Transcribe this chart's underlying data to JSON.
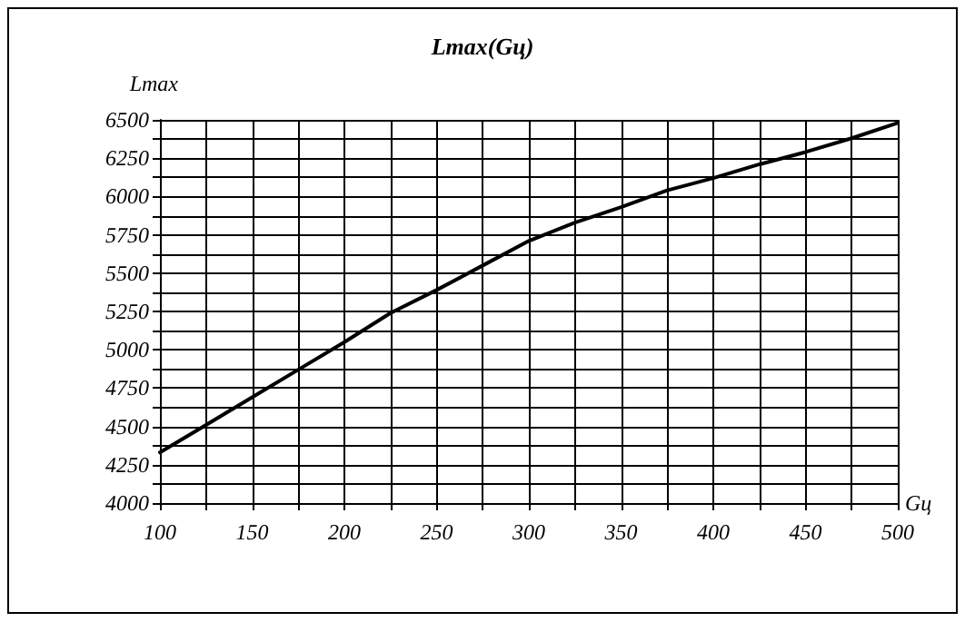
{
  "chart_data": {
    "type": "line",
    "title": "Lmax(Gц)",
    "xlabel": "Gц",
    "ylabel": "Lmax",
    "x": [
      100,
      125,
      150,
      175,
      200,
      225,
      250,
      275,
      300,
      325,
      350,
      375,
      400,
      425,
      450,
      475,
      500
    ],
    "series": [
      {
        "color": "#000000",
        "values": [
          4330,
          4510,
          4690,
          4870,
          5050,
          5240,
          5390,
          5550,
          5710,
          5830,
          5930,
          6040,
          6120,
          6210,
          6290,
          6380,
          6480
        ]
      }
    ],
    "xlim": [
      100,
      500
    ],
    "xticks": [
      100,
      {
        "value": 125,
        "label": null
      },
      150,
      {
        "value": 175,
        "label": null
      },
      200,
      {
        "value": 225,
        "label": null
      },
      250,
      {
        "value": 275,
        "label": null
      },
      300,
      {
        "value": 325,
        "label": null
      },
      350,
      {
        "value": 375,
        "label": null
      },
      400,
      {
        "value": 425,
        "label": null
      },
      450,
      {
        "value": 475,
        "label": null
      },
      500
    ],
    "ylim": [
      4000,
      6500
    ],
    "yticks": [
      4000,
      {
        "value": 4125,
        "label": null
      },
      4250,
      {
        "value": 4375,
        "label": null
      },
      4500,
      {
        "value": 4625,
        "label": null
      },
      4750,
      {
        "value": 4875,
        "label": null
      },
      5000,
      {
        "value": 5125,
        "label": null
      },
      5250,
      {
        "value": 5375,
        "label": null
      },
      5500,
      {
        "value": 5625,
        "label": null
      },
      5750,
      {
        "value": 5875,
        "label": null
      },
      6000,
      {
        "value": 6125,
        "label": null
      },
      6250,
      {
        "value": 6375,
        "label": null
      },
      6500
    ],
    "grid": true,
    "marker": "none",
    "line_style": "solid"
  }
}
